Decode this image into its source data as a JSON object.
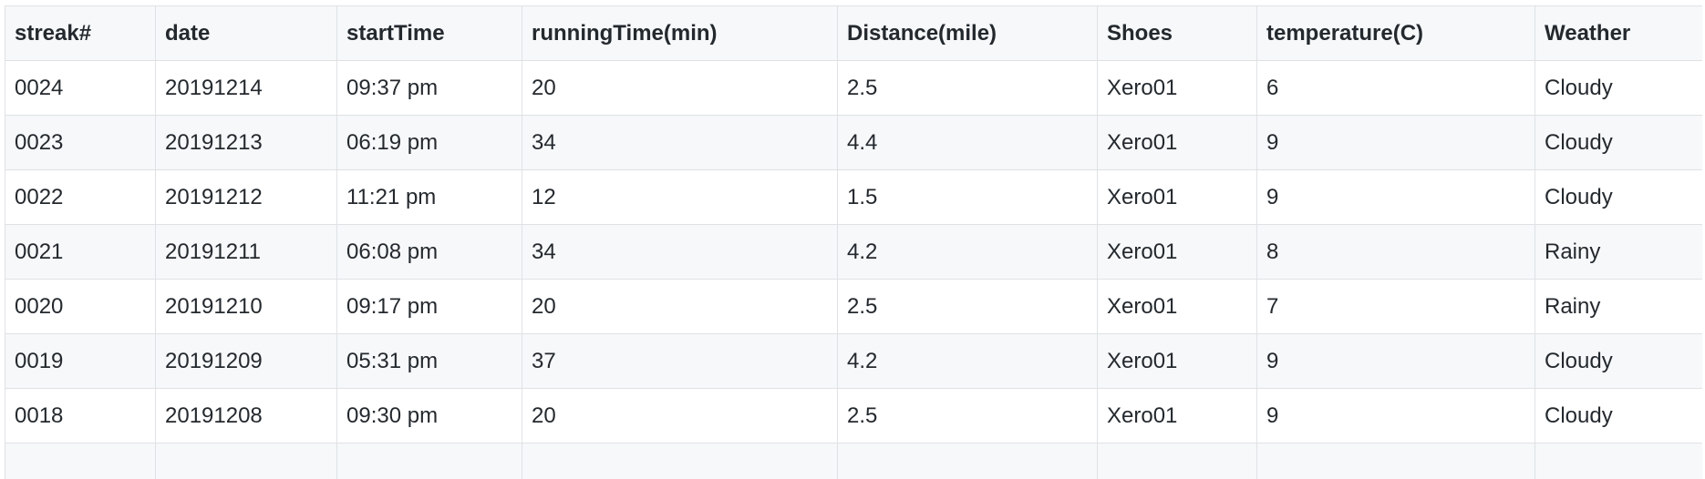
{
  "table": {
    "headers": [
      "streak#",
      "date",
      "startTime",
      "runningTime(min)",
      "Distance(mile)",
      "Shoes",
      "temperature(C)",
      "Weather"
    ],
    "rows": [
      [
        "0024",
        "20191214",
        "09:37 pm",
        "20",
        "2.5",
        "Xero01",
        "6",
        "Cloudy"
      ],
      [
        "0023",
        "20191213",
        "06:19 pm",
        "34",
        "4.4",
        "Xero01",
        "9",
        "Cloudy"
      ],
      [
        "0022",
        "20191212",
        "11:21 pm",
        "12",
        "1.5",
        "Xero01",
        "9",
        "Cloudy"
      ],
      [
        "0021",
        "20191211",
        "06:08 pm",
        "34",
        "4.2",
        "Xero01",
        "8",
        "Rainy"
      ],
      [
        "0020",
        "20191210",
        "09:17 pm",
        "20",
        "2.5",
        "Xero01",
        "7",
        "Rainy"
      ],
      [
        "0019",
        "20191209",
        "05:31 pm",
        "37",
        "4.2",
        "Xero01",
        "9",
        "Cloudy"
      ],
      [
        "0018",
        "20191208",
        "09:30 pm",
        "20",
        "2.5",
        "Xero01",
        "9",
        "Cloudy"
      ],
      [
        "",
        "",
        "",
        "",
        "",
        "",
        "",
        ""
      ]
    ]
  }
}
